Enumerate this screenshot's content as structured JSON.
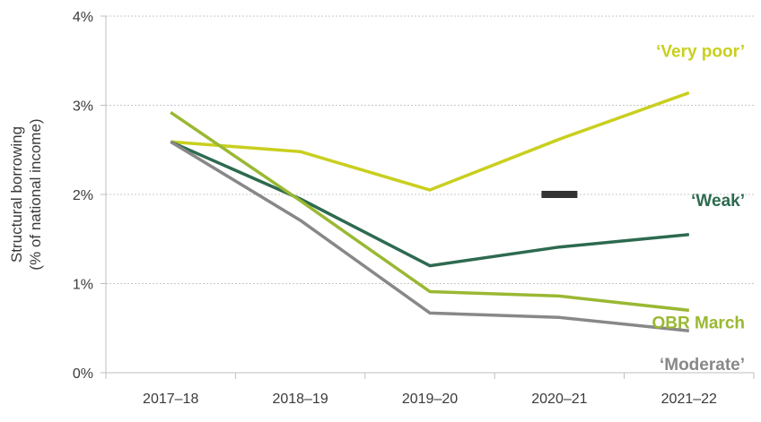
{
  "chart_data": {
    "type": "line",
    "ylabel_line1": "Structural borrowing",
    "ylabel_line2": "(% of national income)",
    "categories": [
      "2017–18",
      "2018–19",
      "2019–20",
      "2020–21",
      "2021–22"
    ],
    "ylim": [
      0,
      4
    ],
    "yticks": [
      0,
      1,
      2,
      3,
      4
    ],
    "ytick_labels": [
      "0%",
      "1%",
      "2%",
      "3%",
      "4%"
    ],
    "grid": "horizontal dotted",
    "series": [
      {
        "name": "‘Very poor’",
        "color": "#c9cf1e",
        "values": [
          2.59,
          2.48,
          2.05,
          2.62,
          3.14
        ]
      },
      {
        "name": "‘Weak’",
        "color": "#2d6a4f",
        "values": [
          2.59,
          1.95,
          1.2,
          1.41,
          1.55
        ]
      },
      {
        "name": "OBR March",
        "color": "#9ab832",
        "values": [
          2.92,
          1.93,
          0.91,
          0.86,
          0.7
        ]
      },
      {
        "name": "‘Moderate’",
        "color": "#888888",
        "values": [
          2.59,
          1.71,
          0.67,
          0.62,
          0.47
        ]
      }
    ],
    "marker": {
      "category_index": 3,
      "value": 2.0,
      "color": "#333333"
    }
  }
}
